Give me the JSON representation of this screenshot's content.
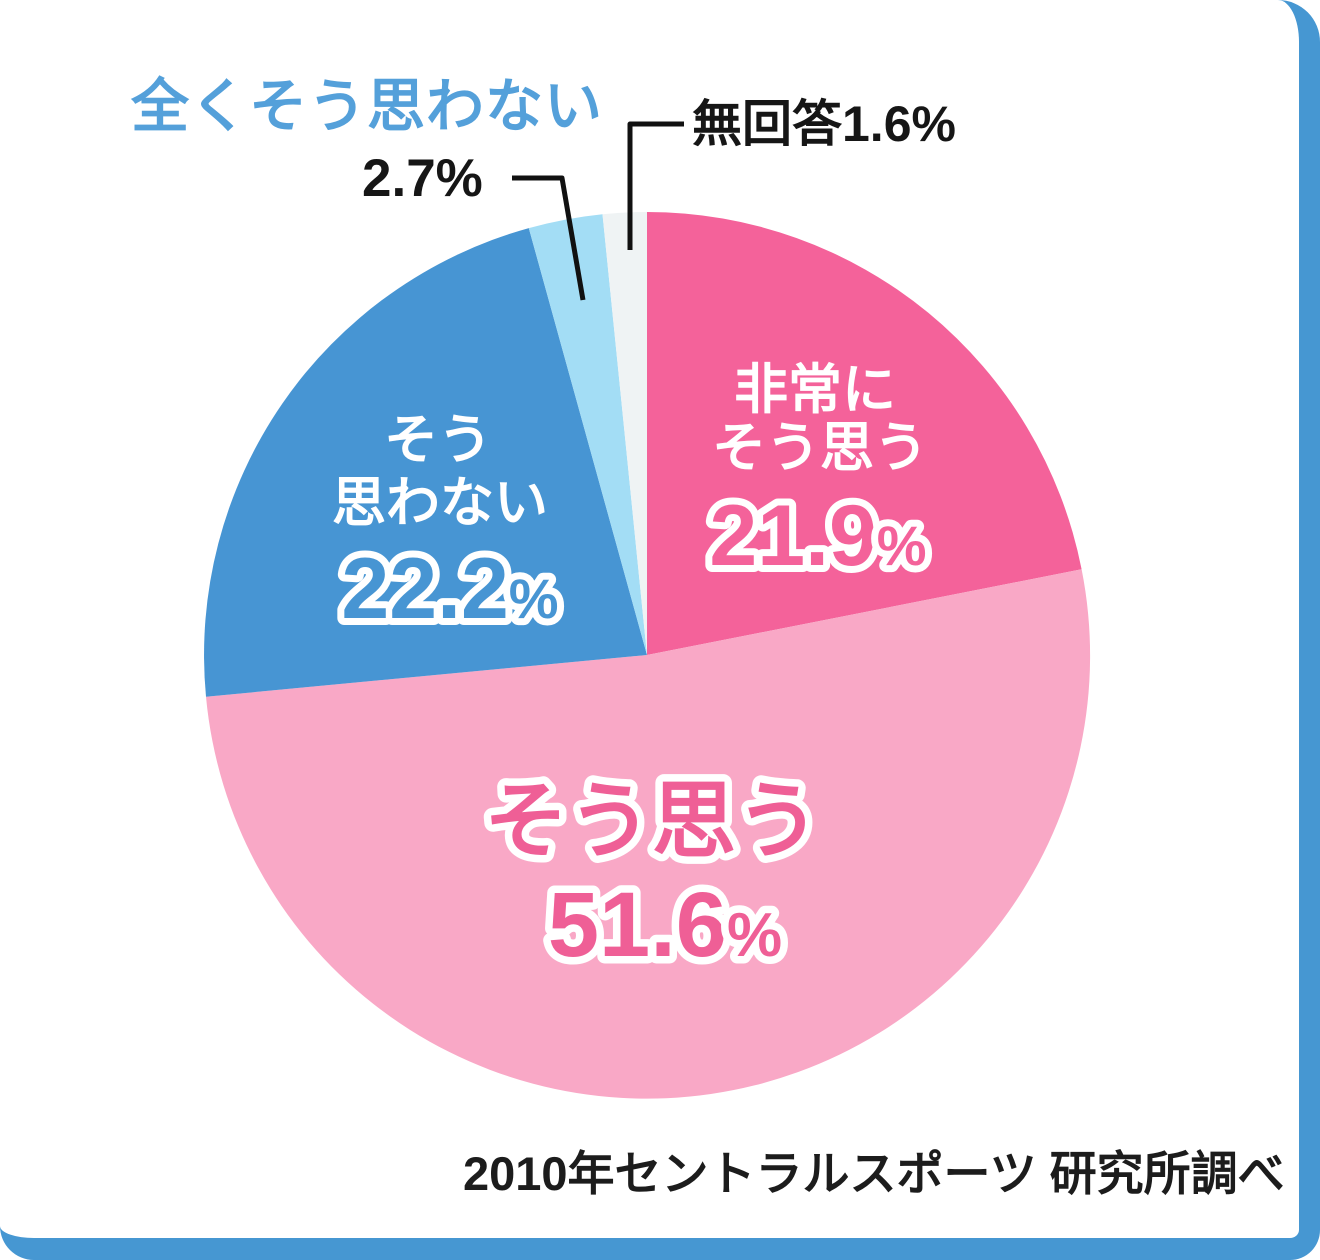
{
  "accent": {
    "border_blue": "#4697d2",
    "title_blue": "#54a0da",
    "pink_strong": "#f4629a",
    "pink_light": "#f9a8c6",
    "blue_slice": "#4795d3",
    "blue_pale": "#a3ddf5",
    "gray_pale": "#eff3f4"
  },
  "caption": {
    "text": "2010年セントラルスポーツ 研究所調べ"
  },
  "chart_data": {
    "type": "pie",
    "title": "",
    "direction": "clockwise",
    "start_angle_deg": 0,
    "legend_position": "none",
    "percent_sign": "%",
    "slices": [
      {
        "name": "非常にそう思う",
        "value": 21.9,
        "color": "#f4629a",
        "label_lines": [
          "非常に",
          "そう思う"
        ],
        "number": "21.9",
        "label_placement": "inside"
      },
      {
        "name": "そう思う",
        "value": 51.6,
        "color": "#f9a8c6",
        "label_lines": [
          "そう思う"
        ],
        "number": "51.6",
        "label_placement": "inside"
      },
      {
        "name": "そう思わない",
        "value": 22.2,
        "color": "#4795d3",
        "label_lines": [
          "そう",
          "思わない"
        ],
        "number": "22.2",
        "label_placement": "inside"
      },
      {
        "name": "全くそう思わない",
        "value": 2.7,
        "color": "#a3ddf5",
        "outside_label": "全くそう思わない",
        "outside_value": "2.7%",
        "label_placement": "outside"
      },
      {
        "name": "無回答",
        "value": 1.6,
        "color": "#eff3f4",
        "outside_label": "無回答1.6%",
        "label_placement": "outside"
      }
    ]
  }
}
